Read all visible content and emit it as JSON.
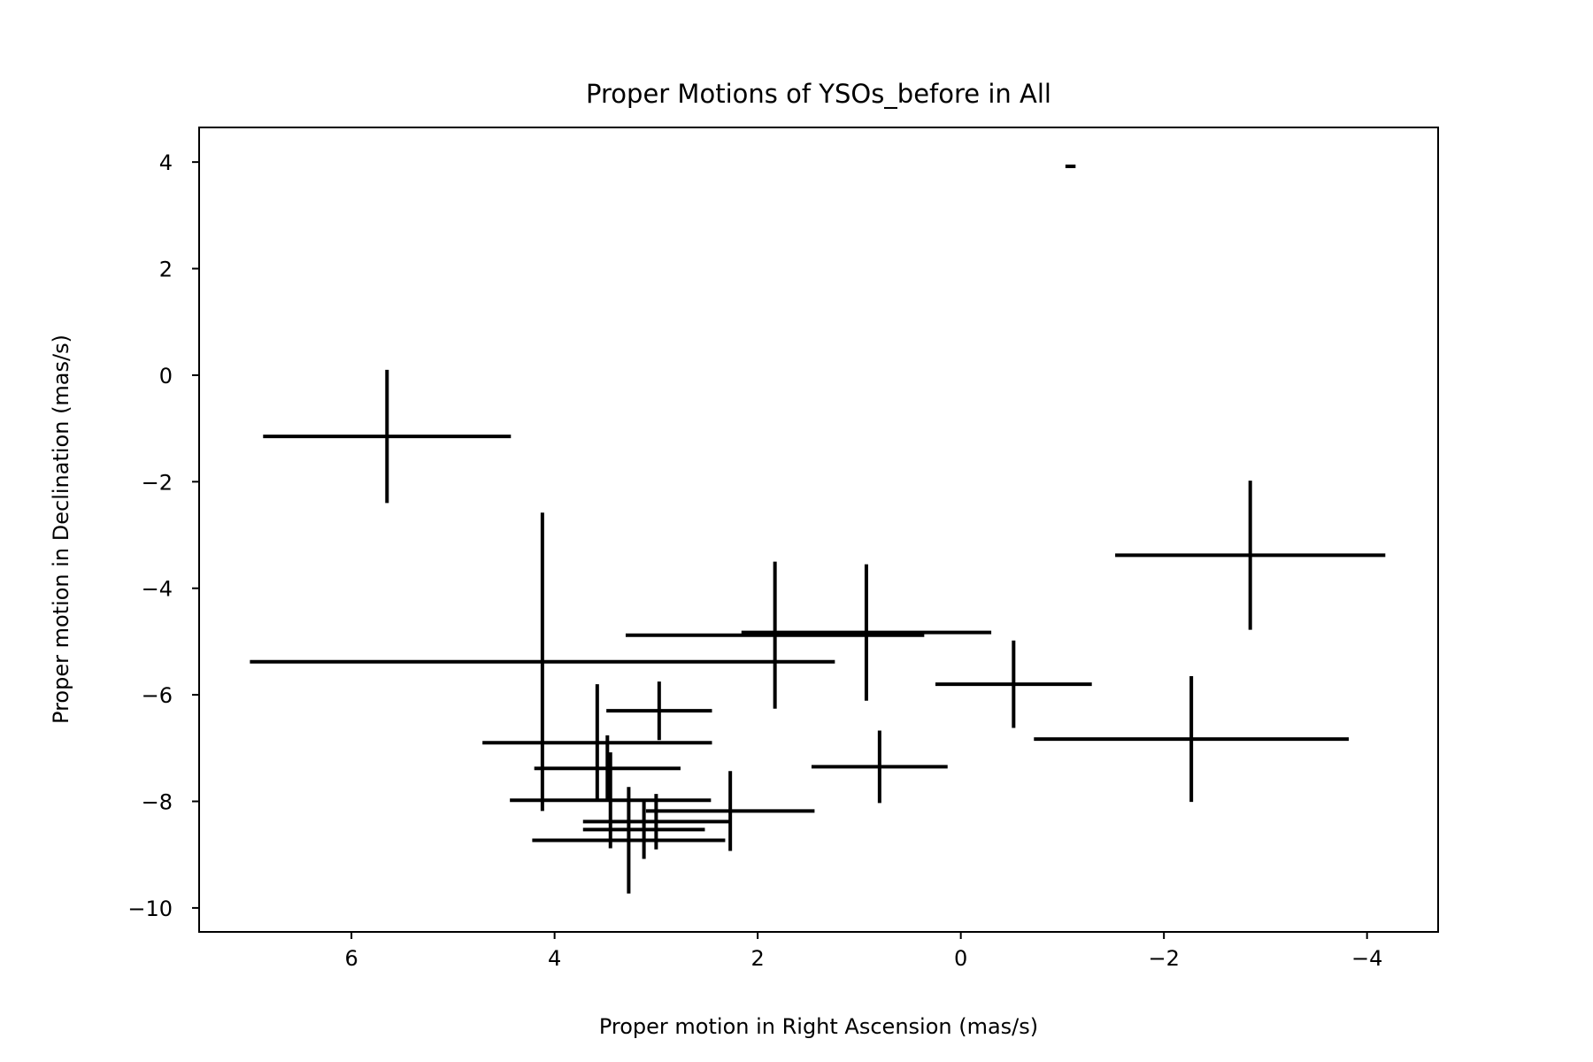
{
  "chart_data": {
    "type": "scatter",
    "title": "Proper Motions of YSOs_before in All",
    "xlabel": "Proper motion in Right Ascension (mas/s)",
    "ylabel": "Proper motion in Declination (mas/s)",
    "xlim": [
      7.5,
      -4.7
    ],
    "ylim": [
      -10.45,
      4.65
    ],
    "x_inverted": true,
    "grid": false,
    "xticks": [
      6,
      4,
      2,
      0,
      -2,
      -4
    ],
    "xtick_labels": [
      "6",
      "4",
      "2",
      "0",
      "−2",
      "−4"
    ],
    "yticks": [
      4,
      2,
      0,
      -2,
      -4,
      -6,
      -8,
      -10
    ],
    "ytick_labels": [
      "4",
      "2",
      "0",
      "−2",
      "−4",
      "−6",
      "−8",
      "−10"
    ],
    "color": "#000000",
    "points": [
      {
        "x": -1.08,
        "y": 3.92,
        "xerr": 0.05,
        "yerr": 0.03
      },
      {
        "x": 5.65,
        "y": -1.15,
        "xerr": 1.22,
        "yerr": 1.25
      },
      {
        "x": -2.85,
        "y": -3.38,
        "xerr": 1.33,
        "yerr": 1.4
      },
      {
        "x": 4.12,
        "y": -5.38,
        "xerr": 2.88,
        "yerr": 2.8
      },
      {
        "x": 1.83,
        "y": -4.88,
        "xerr": 1.47,
        "yerr": 1.38
      },
      {
        "x": 0.93,
        "y": -4.83,
        "xerr": 1.23,
        "yerr": 1.28
      },
      {
        "x": -0.52,
        "y": -5.8,
        "xerr": 0.77,
        "yerr": 0.82
      },
      {
        "x": -2.27,
        "y": -6.83,
        "xerr": 1.55,
        "yerr": 1.18
      },
      {
        "x": 0.8,
        "y": -7.35,
        "xerr": 0.67,
        "yerr": 0.68
      },
      {
        "x": 2.97,
        "y": -6.3,
        "xerr": 0.52,
        "yerr": 0.55
      },
      {
        "x": 3.58,
        "y": -6.9,
        "xerr": 1.13,
        "yerr": 1.1
      },
      {
        "x": 3.48,
        "y": -7.38,
        "xerr": 0.72,
        "yerr": 0.62
      },
      {
        "x": 3.45,
        "y": -7.98,
        "xerr": 0.99,
        "yerr": 0.9
      },
      {
        "x": 2.27,
        "y": -8.18,
        "xerr": 0.83,
        "yerr": 0.75
      },
      {
        "x": 3.0,
        "y": -8.38,
        "xerr": 0.72,
        "yerr": 0.52
      },
      {
        "x": 3.12,
        "y": -8.53,
        "xerr": 0.6,
        "yerr": 0.55
      },
      {
        "x": 3.27,
        "y": -8.73,
        "xerr": 0.95,
        "yerr": 1.0
      }
    ]
  }
}
